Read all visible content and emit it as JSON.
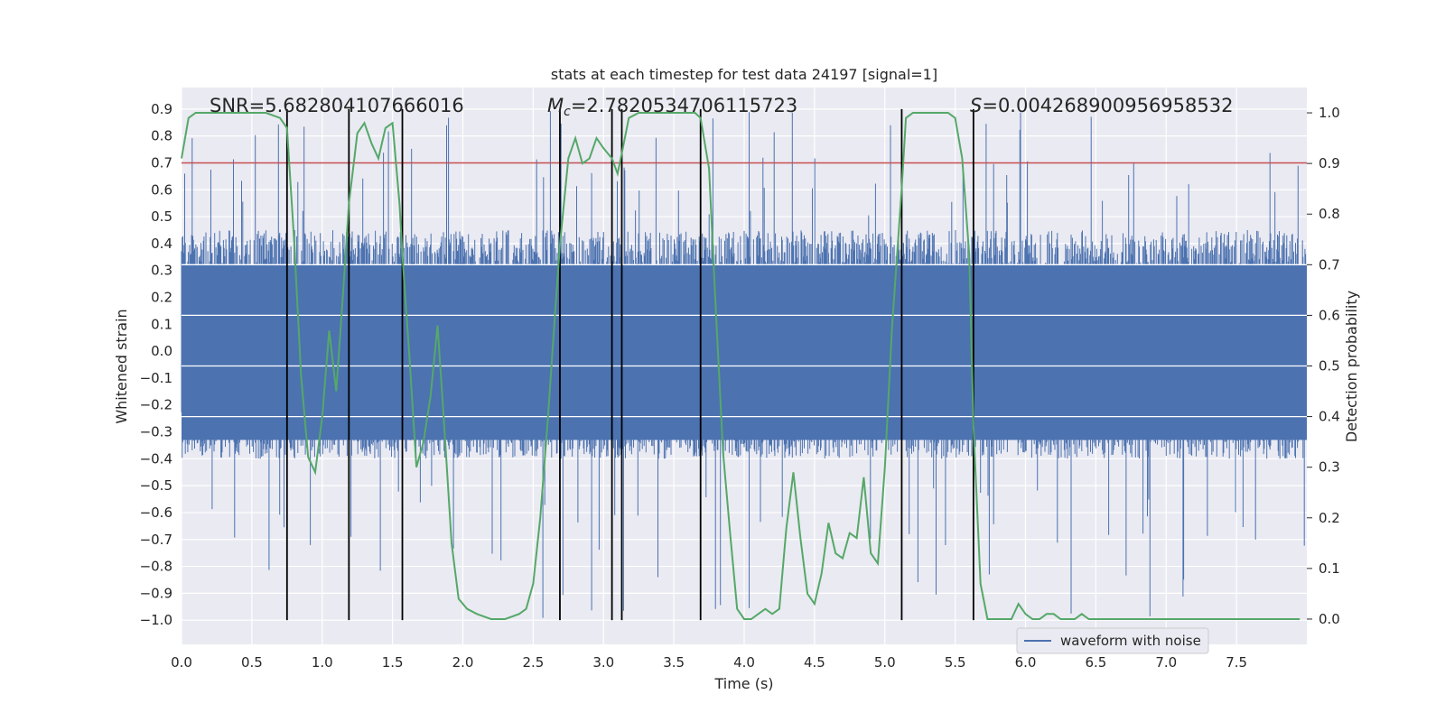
{
  "chart_data": {
    "type": "line",
    "title": "stats at each timestep for test data 24197 [signal=1]",
    "xlabel": "Time (s)",
    "ylabel_left": "Whitened strain",
    "ylabel_right": "Detection probability",
    "xlim": [
      0.0,
      8.0
    ],
    "ylim_left": [
      -1.09,
      0.98
    ],
    "ylim_right": [
      -0.05,
      1.05
    ],
    "x_ticks": [
      "0.0",
      "0.5",
      "1.0",
      "1.5",
      "2.0",
      "2.5",
      "3.0",
      "3.5",
      "4.0",
      "4.5",
      "5.0",
      "5.5",
      "6.0",
      "6.5",
      "7.0",
      "7.5"
    ],
    "y_ticks_left": [
      "0.9",
      "0.8",
      "0.7",
      "0.6",
      "0.5",
      "0.4",
      "0.3",
      "0.2",
      "0.1",
      "0.0",
      "-0.1",
      "-0.2",
      "-0.3",
      "-0.4",
      "-0.5",
      "-0.6",
      "-0.7",
      "-0.8",
      "-0.9",
      "-1.0"
    ],
    "y_ticks_right": [
      "1.0",
      "0.9",
      "0.8",
      "0.7",
      "0.6",
      "0.5",
      "0.4",
      "0.3",
      "0.2",
      "0.1",
      "0.0"
    ],
    "grid": true,
    "legend": {
      "placement": "bottom-right",
      "entries": [
        "waveform with noise"
      ]
    },
    "annotations": {
      "snr": "SNR=5.682804107666016",
      "mc_symbol": "M",
      "mc_sub": "c",
      "mc_value": "=2.7820534706115723",
      "s_symbol": "S",
      "s_value": "=0.004268900956958532"
    },
    "threshold_left": 0.7,
    "waveform_envelope_left": {
      "typical_high": 0.45,
      "typical_low": -0.4,
      "peak_high": 0.9,
      "peak_low": -1.0
    },
    "vertical_markers_x": [
      0.75,
      1.19,
      1.57,
      2.69,
      3.06,
      3.13,
      3.69,
      5.12,
      5.63
    ],
    "detection_probability": {
      "x": [
        0.0,
        0.05,
        0.1,
        0.2,
        0.3,
        0.4,
        0.5,
        0.6,
        0.7,
        0.75,
        0.8,
        0.85,
        0.9,
        0.95,
        1.0,
        1.05,
        1.1,
        1.15,
        1.19,
        1.25,
        1.3,
        1.35,
        1.4,
        1.45,
        1.5,
        1.55,
        1.57,
        1.62,
        1.67,
        1.72,
        1.77,
        1.82,
        1.87,
        1.92,
        1.97,
        2.03,
        2.1,
        2.2,
        2.3,
        2.4,
        2.45,
        2.5,
        2.55,
        2.6,
        2.65,
        2.69,
        2.75,
        2.8,
        2.85,
        2.9,
        2.95,
        3.0,
        3.03,
        3.06,
        3.1,
        3.13,
        3.18,
        3.25,
        3.35,
        3.45,
        3.55,
        3.65,
        3.69,
        3.75,
        3.8,
        3.85,
        3.9,
        3.95,
        4.0,
        4.05,
        4.1,
        4.15,
        4.2,
        4.25,
        4.3,
        4.35,
        4.4,
        4.45,
        4.5,
        4.55,
        4.6,
        4.65,
        4.7,
        4.75,
        4.8,
        4.85,
        4.9,
        4.95,
        5.0,
        5.05,
        5.12,
        5.15,
        5.2,
        5.25,
        5.3,
        5.35,
        5.4,
        5.45,
        5.5,
        5.55,
        5.6,
        5.63,
        5.68,
        5.73,
        5.78,
        5.85,
        5.9,
        5.95,
        6.0,
        6.05,
        6.1,
        6.15,
        6.2,
        6.25,
        6.3,
        6.35,
        6.4,
        6.45,
        6.5,
        6.55,
        6.6,
        6.65,
        6.7,
        6.8,
        6.9,
        7.0,
        7.1,
        7.2,
        7.3,
        7.4,
        7.5,
        7.6,
        7.7,
        7.8,
        7.9,
        7.95
      ],
      "y": [
        0.91,
        0.99,
        1.0,
        1.0,
        1.0,
        1.0,
        1.0,
        1.0,
        0.99,
        0.97,
        0.75,
        0.48,
        0.32,
        0.29,
        0.4,
        0.57,
        0.45,
        0.65,
        0.82,
        0.96,
        0.98,
        0.94,
        0.91,
        0.97,
        0.98,
        0.82,
        0.72,
        0.52,
        0.3,
        0.35,
        0.44,
        0.58,
        0.37,
        0.15,
        0.04,
        0.02,
        0.01,
        0.0,
        0.0,
        0.01,
        0.02,
        0.07,
        0.2,
        0.38,
        0.58,
        0.74,
        0.91,
        0.95,
        0.9,
        0.91,
        0.95,
        0.93,
        0.92,
        0.91,
        0.88,
        0.92,
        0.99,
        1.0,
        1.0,
        1.0,
        1.0,
        1.0,
        0.99,
        0.89,
        0.6,
        0.33,
        0.17,
        0.02,
        0.0,
        0.0,
        0.01,
        0.02,
        0.01,
        0.02,
        0.18,
        0.29,
        0.16,
        0.05,
        0.03,
        0.09,
        0.19,
        0.13,
        0.12,
        0.17,
        0.16,
        0.28,
        0.13,
        0.11,
        0.3,
        0.57,
        0.85,
        0.99,
        1.0,
        1.0,
        1.0,
        1.0,
        1.0,
        1.0,
        0.99,
        0.91,
        0.72,
        0.38,
        0.07,
        0.0,
        0.0,
        0.0,
        0.0,
        0.03,
        0.01,
        0.0,
        0.0,
        0.01,
        0.01,
        0.0,
        0.0,
        0.0,
        0.01,
        0.0,
        0.0,
        0.0,
        0.0,
        0.0,
        0.0,
        0.0,
        0.0,
        0.0,
        0.0,
        0.0,
        0.0,
        0.0,
        0.0,
        0.0,
        0.0,
        0.0,
        0.0,
        0.0
      ]
    },
    "colors": {
      "axes_background": "#EAEAF2",
      "grid": "#FFFFFF",
      "waveform": "#4C72B0",
      "detection_probability": "#55A868",
      "threshold": "#C44E52",
      "marker": "#000000",
      "text": "#262626"
    }
  }
}
